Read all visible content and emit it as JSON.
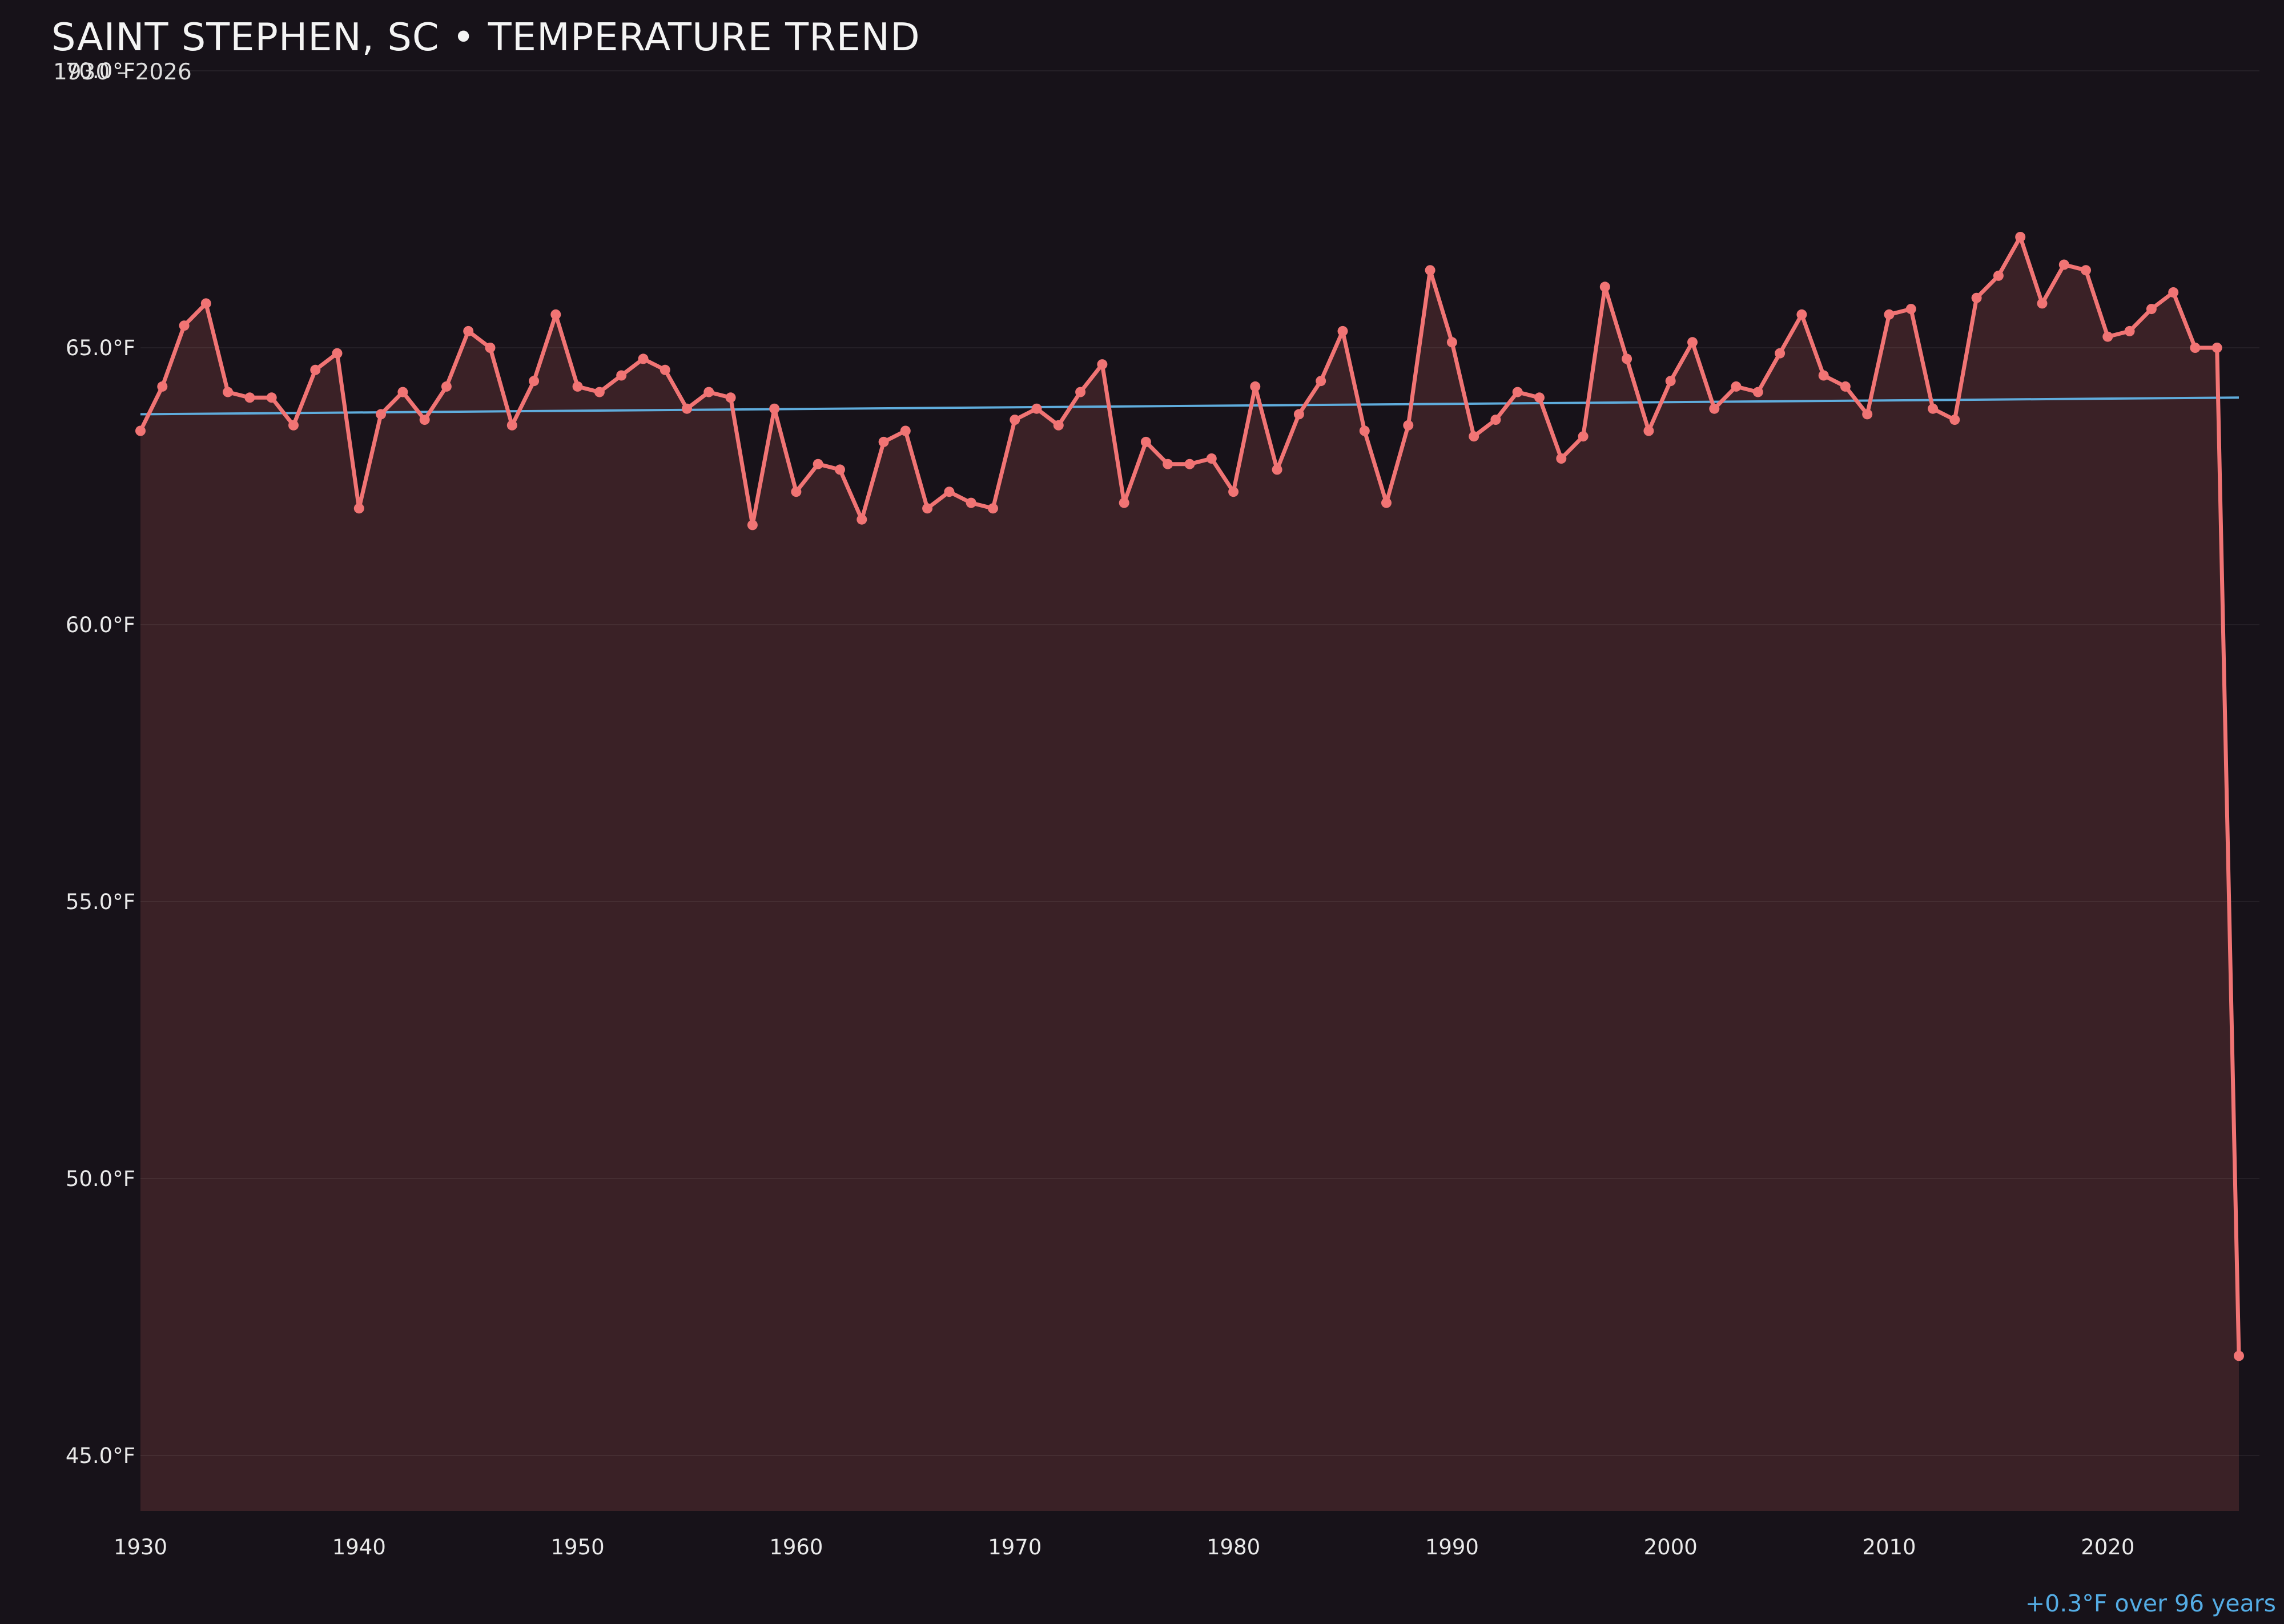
{
  "header": {
    "title": "SAINT STEPHEN, SC • TEMPERATURE TREND",
    "subtitle": "1930 – 2026"
  },
  "footer": {
    "trend_note": "+0.3°F over 96 years"
  },
  "chart_data": {
    "type": "line",
    "title": "SAINT STEPHEN, SC • TEMPERATURE TREND",
    "subtitle": "1930 – 2026",
    "xlabel": "",
    "ylabel": "",
    "legend": "none",
    "grid": "horizontal",
    "ylim": [
      44,
      70
    ],
    "x": [
      1930,
      1931,
      1932,
      1933,
      1934,
      1935,
      1936,
      1937,
      1938,
      1939,
      1940,
      1941,
      1942,
      1943,
      1944,
      1945,
      1946,
      1947,
      1948,
      1949,
      1950,
      1951,
      1952,
      1953,
      1954,
      1955,
      1956,
      1957,
      1958,
      1959,
      1960,
      1961,
      1962,
      1963,
      1964,
      1965,
      1966,
      1967,
      1968,
      1969,
      1970,
      1971,
      1972,
      1973,
      1974,
      1975,
      1976,
      1977,
      1978,
      1979,
      1980,
      1981,
      1982,
      1983,
      1984,
      1985,
      1986,
      1987,
      1988,
      1989,
      1990,
      1991,
      1992,
      1993,
      1994,
      1995,
      1996,
      1997,
      1998,
      1999,
      2000,
      2001,
      2002,
      2003,
      2004,
      2005,
      2006,
      2007,
      2008,
      2009,
      2010,
      2011,
      2012,
      2013,
      2014,
      2015,
      2016,
      2017,
      2018,
      2019,
      2020,
      2021,
      2022,
      2023,
      2024,
      2025,
      2026
    ],
    "series": [
      {
        "name": "annual-mean-temperature-f",
        "values": [
          63.5,
          64.3,
          65.4,
          65.8,
          64.2,
          64.1,
          64.1,
          63.6,
          64.6,
          64.9,
          62.1,
          63.8,
          64.2,
          63.7,
          64.3,
          65.3,
          65.0,
          63.6,
          64.4,
          65.6,
          64.3,
          64.2,
          64.5,
          64.8,
          64.6,
          63.9,
          64.2,
          64.1,
          61.8,
          63.9,
          62.4,
          62.9,
          62.8,
          61.9,
          63.3,
          63.5,
          62.1,
          62.4,
          62.2,
          62.1,
          63.7,
          63.9,
          63.6,
          64.2,
          64.7,
          62.2,
          63.3,
          62.9,
          62.9,
          63.0,
          62.4,
          64.3,
          62.8,
          63.8,
          64.4,
          65.3,
          63.5,
          62.2,
          63.6,
          66.4,
          65.1,
          63.4,
          63.7,
          64.2,
          64.1,
          63.0,
          63.4,
          66.1,
          64.8,
          63.5,
          64.4,
          65.1,
          63.9,
          64.3,
          64.2,
          64.9,
          65.6,
          64.5,
          64.3,
          63.8,
          65.6,
          65.7,
          63.9,
          63.7,
          65.9,
          66.3,
          67.0,
          65.8,
          66.5,
          66.4,
          65.2,
          65.3,
          65.7,
          66.0,
          65.0,
          65.0,
          46.8
        ]
      }
    ],
    "trend_line": {
      "x0": 1930,
      "y0": 63.8,
      "x1": 2026,
      "y1": 64.1,
      "label": "+0.3°F over 96 years"
    },
    "yticks": [
      {
        "value": 70,
        "label": "70.0°F"
      },
      {
        "value": 65,
        "label": "65.0°F"
      },
      {
        "value": 60,
        "label": "60.0°F"
      },
      {
        "value": 55,
        "label": "55.0°F"
      },
      {
        "value": 50,
        "label": "50.0°F"
      },
      {
        "value": 45,
        "label": "45.0°F"
      }
    ],
    "xticks": [
      {
        "value": 1930,
        "label": "1930"
      },
      {
        "value": 1940,
        "label": "1940"
      },
      {
        "value": 1950,
        "label": "1950"
      },
      {
        "value": 1960,
        "label": "1960"
      },
      {
        "value": 1970,
        "label": "1970"
      },
      {
        "value": 1980,
        "label": "1980"
      },
      {
        "value": 1990,
        "label": "1990"
      },
      {
        "value": 2000,
        "label": "2000"
      },
      {
        "value": 2010,
        "label": "2010"
      },
      {
        "value": 2020,
        "label": "2020"
      }
    ],
    "colors": {
      "background": "#171219",
      "line": "#f17474",
      "fill": "rgba(242,115,115,0.16)",
      "trend": "#5facdc",
      "grid": "rgba(255,255,255,0.06)",
      "text": "#e9e9e9",
      "title": "#f4f4f4",
      "annotation": "#54ace4"
    }
  }
}
